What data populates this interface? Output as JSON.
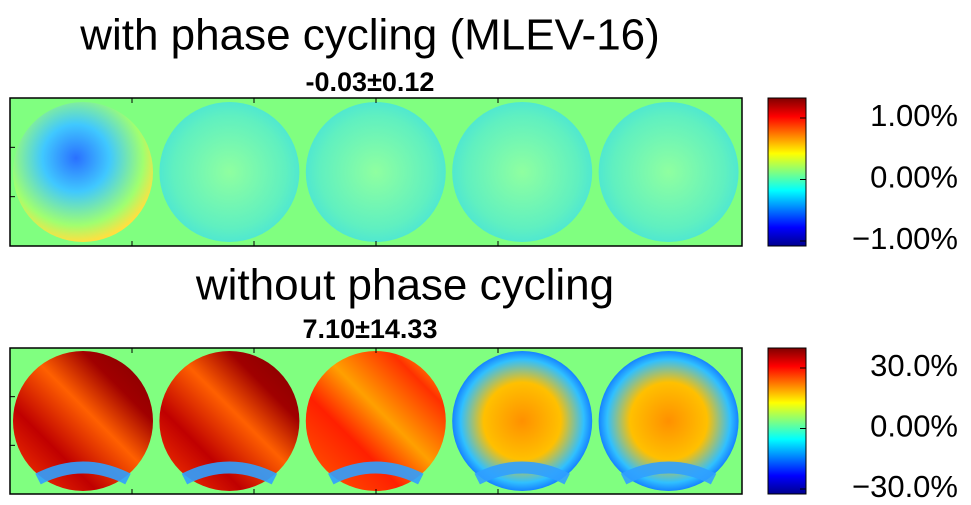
{
  "panels": [
    {
      "title": "with phase cycling (MLEV-16)",
      "stats": "-0.03±0.12",
      "colorbar": {
        "ticks": [
          {
            "value": 1,
            "label": "1.00%"
          },
          {
            "value": 0,
            "label": "0.00%"
          },
          {
            "value": -1,
            "label": "−1.00%"
          }
        ]
      }
    },
    {
      "title": "without phase cycling",
      "stats": "7.10±14.33",
      "colorbar": {
        "ticks": [
          {
            "value": 30,
            "label": "30.0%"
          },
          {
            "value": 0,
            "label": "0.00%"
          },
          {
            "value": -30,
            "label": "−30.0%"
          }
        ]
      }
    }
  ]
}
